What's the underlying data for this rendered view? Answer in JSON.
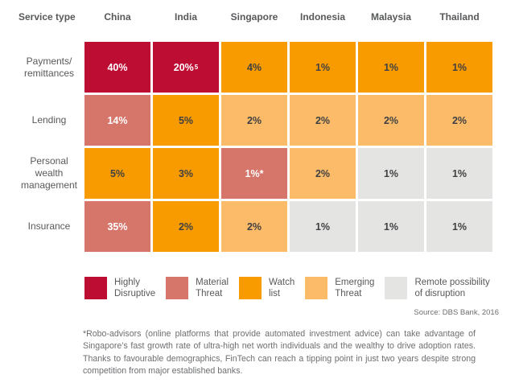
{
  "colors": {
    "highly_disruptive": "#BE0D33",
    "material_threat": "#D6766B",
    "watch_list": "#F89B00",
    "emerging_threat": "#FBBB69",
    "remote_possibility": "#E4E4E3",
    "text_on_dark": "#FFFFFF",
    "text_on_light": "#414042",
    "label_gray": "#58595B",
    "note_gray": "#6D6E71"
  },
  "chart_data": {
    "type": "heatmap",
    "row_header": "Service type",
    "columns": [
      "China",
      "India",
      "Singapore",
      "Indonesia",
      "Malaysia",
      "Thailand"
    ],
    "rows": [
      {
        "label": "Payments/ remittances",
        "cells": [
          {
            "value": "40%",
            "level": "Highly Disruptive",
            "bg": "#BE0D33",
            "fg": "#FFFFFF"
          },
          {
            "value": "20%",
            "sup": "5",
            "level": "Highly Disruptive",
            "bg": "#BE0D33",
            "fg": "#FFFFFF"
          },
          {
            "value": "4%",
            "level": "Watch list",
            "bg": "#F89B00",
            "fg": "#414042"
          },
          {
            "value": "1%",
            "level": "Watch list",
            "bg": "#F89B00",
            "fg": "#414042"
          },
          {
            "value": "1%",
            "level": "Watch list",
            "bg": "#F89B00",
            "fg": "#414042"
          },
          {
            "value": "1%",
            "level": "Watch list",
            "bg": "#F89B00",
            "fg": "#414042"
          }
        ]
      },
      {
        "label": "Lending",
        "cells": [
          {
            "value": "14%",
            "level": "Material Threat",
            "bg": "#D6766B",
            "fg": "#FFFFFF"
          },
          {
            "value": "5%",
            "level": "Watch list",
            "bg": "#F89B00",
            "fg": "#414042"
          },
          {
            "value": "2%",
            "level": "Emerging Threat",
            "bg": "#FBBB69",
            "fg": "#414042"
          },
          {
            "value": "2%",
            "level": "Emerging Threat",
            "bg": "#FBBB69",
            "fg": "#414042"
          },
          {
            "value": "2%",
            "level": "Emerging Threat",
            "bg": "#FBBB69",
            "fg": "#414042"
          },
          {
            "value": "2%",
            "level": "Emerging Threat",
            "bg": "#FBBB69",
            "fg": "#414042"
          }
        ]
      },
      {
        "label": "Personal wealth management",
        "cells": [
          {
            "value": "5%",
            "level": "Watch list",
            "bg": "#F89B00",
            "fg": "#414042"
          },
          {
            "value": "3%",
            "level": "Watch list",
            "bg": "#F89B00",
            "fg": "#414042"
          },
          {
            "value": "1%*",
            "level": "Material Threat",
            "bg": "#D6766B",
            "fg": "#FFFFFF"
          },
          {
            "value": "2%",
            "level": "Emerging Threat",
            "bg": "#FBBB69",
            "fg": "#414042"
          },
          {
            "value": "1%",
            "level": "Remote possibility of disruption",
            "bg": "#E4E4E3",
            "fg": "#414042"
          },
          {
            "value": "1%",
            "level": "Remote possibility of disruption",
            "bg": "#E4E4E3",
            "fg": "#414042"
          }
        ]
      },
      {
        "label": "Insurance",
        "cells": [
          {
            "value": "35%",
            "level": "Material Threat",
            "bg": "#D6766B",
            "fg": "#FFFFFF"
          },
          {
            "value": "2%",
            "level": "Watch list",
            "bg": "#F89B00",
            "fg": "#414042"
          },
          {
            "value": "2%",
            "level": "Emerging Threat",
            "bg": "#FBBB69",
            "fg": "#414042"
          },
          {
            "value": "1%",
            "level": "Remote possibility of disruption",
            "bg": "#E4E4E3",
            "fg": "#414042"
          },
          {
            "value": "1%",
            "level": "Remote possibility of disruption",
            "bg": "#E4E4E3",
            "fg": "#414042"
          },
          {
            "value": "1%",
            "level": "Remote possibility of disruption",
            "bg": "#E4E4E3",
            "fg": "#414042"
          }
        ]
      }
    ],
    "legend": [
      {
        "lines": [
          "Highly",
          "Disruptive"
        ],
        "color": "#BE0D33"
      },
      {
        "lines": [
          "Material",
          "Threat"
        ],
        "color": "#D6766B"
      },
      {
        "lines": [
          "Watch",
          "list"
        ],
        "color": "#F89B00"
      },
      {
        "lines": [
          "Emerging",
          "Threat"
        ],
        "color": "#FBBB69"
      },
      {
        "lines": [
          "Remote possibility",
          "of disruption"
        ],
        "color": "#E4E4E3"
      }
    ],
    "legend_position": "bottom"
  },
  "source": "Source: DBS Bank, 2016",
  "footnote": "*Robo-advisors (online platforms that provide automated investment advice) can take advantage of Singapore’s fast growth rate of ultra-high net worth individuals and the wealthy to drive adoption rates. Thanks to favourable demographics, FinTech can reach a tipping point in just two years despite strong competition from major established banks."
}
